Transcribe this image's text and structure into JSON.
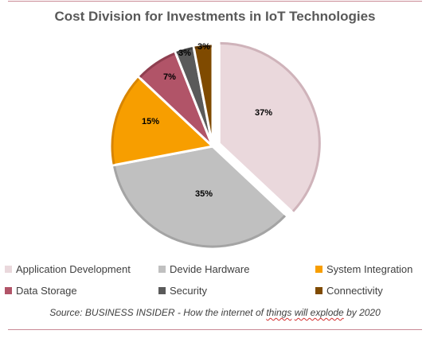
{
  "chart_data": {
    "type": "pie",
    "title": "Cost Division for Investments in IoT Technologies",
    "slices": [
      {
        "name": "Application Development",
        "value": 37,
        "label": "37%",
        "color": "#ead8dc",
        "edge": "#cfb3ba"
      },
      {
        "name": "Devide Hardware",
        "value": 35,
        "label": "35%",
        "color": "#c0c0c0",
        "edge": "#a4a4a4"
      },
      {
        "name": "System Integration",
        "value": 15,
        "label": "15%",
        "color": "#f79e00",
        "edge": "#d88500"
      },
      {
        "name": "Data Storage",
        "value": 7,
        "label": "7%",
        "color": "#b15468",
        "edge": "#8f3f50"
      },
      {
        "name": "Security",
        "value": 3,
        "label": "3%",
        "color": "#5a5a5a",
        "edge": "#444444"
      },
      {
        "name": "Connectivity",
        "value": 3,
        "label": "3%",
        "color": "#7f4a00",
        "edge": "#5e3600"
      }
    ],
    "legend_position": "bottom",
    "exploded_slice": "Application Development"
  },
  "source": {
    "before": "Source: BUSINESS INSIDER - How the internet of ",
    "word1": "things",
    "between": " ",
    "word2": "will explode",
    "after": " by 2020"
  }
}
